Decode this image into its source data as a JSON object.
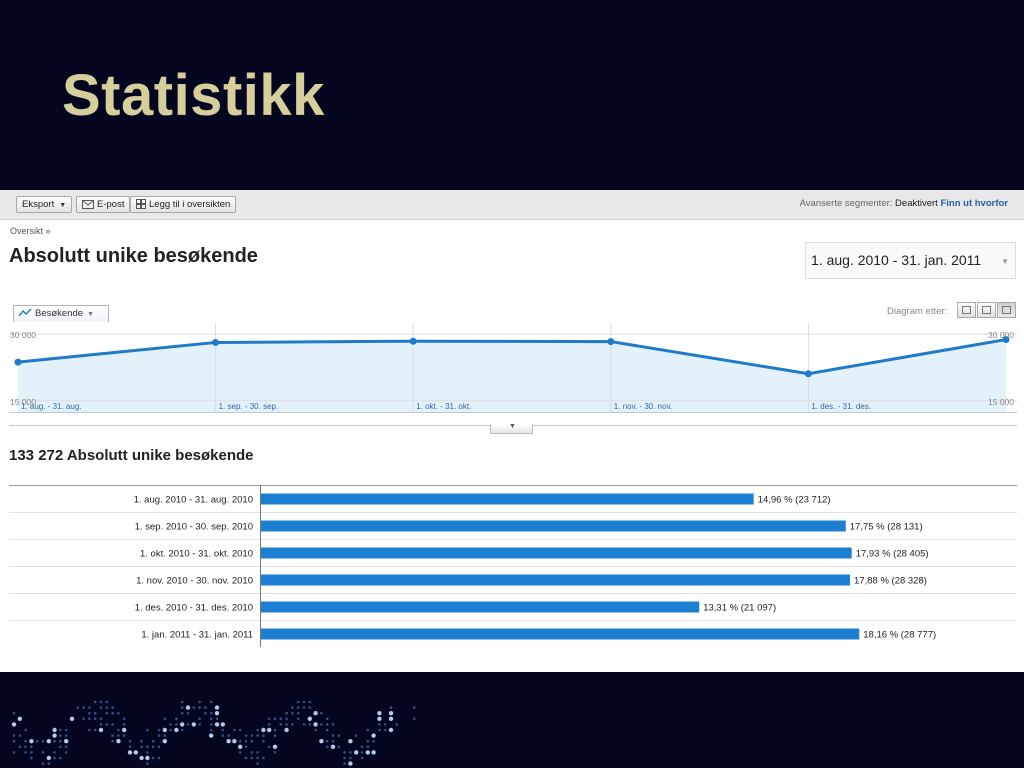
{
  "slide": {
    "title": "Statistikk"
  },
  "toolbar": {
    "export_label": "Eksport",
    "email_label": "E-post",
    "add_dashboard_label": "Legg til i oversikten",
    "segments_label": "Avanserte segmenter:",
    "segments_state": "Deaktivert",
    "segments_link": "Finn ut hvorfor"
  },
  "breadcrumb": "Oversikt »",
  "report": {
    "title": "Absolutt unike besøkende",
    "date_range": "1. aug. 2010 - 31. jan. 2011",
    "metric_select": "Besøkende",
    "graph_by_label": "Diagram etter:",
    "total_heading": "133 272 Absolutt unike besøkende"
  },
  "colors": {
    "line": "#1f7ac9",
    "area": "#e3f1fa",
    "bar": "#1d7fd2"
  },
  "chart_data": [
    {
      "type": "line",
      "ylabel_left": [
        "30 000",
        "15 000"
      ],
      "ylabel_right": [
        "30 000",
        "15 000"
      ],
      "ylim": [
        15000,
        30000
      ],
      "grid": true,
      "x_labels": [
        "1. aug. - 31. aug.",
        "1. sep. - 30. sep.",
        "1. okt. - 31. okt.",
        "1. nov. - 30. nov.",
        "1. des. - 31. des."
      ],
      "series": [
        {
          "values": [
            23712,
            28131,
            28405,
            28328,
            21097,
            28777
          ]
        }
      ]
    },
    {
      "type": "bar",
      "orientation": "horizontal",
      "categories": [
        "1. aug. 2010 - 31. aug. 2010",
        "1. sep. 2010 - 30. sep. 2010",
        "1. okt. 2010 - 31. okt. 2010",
        "1. nov. 2010 - 30. nov. 2010",
        "1. des. 2010 - 31. des. 2010",
        "1. jan. 2011 - 31. jan. 2011"
      ],
      "values": [
        23712,
        28131,
        28405,
        28328,
        21097,
        28777
      ],
      "percents": [
        14.96,
        17.75,
        17.93,
        17.88,
        13.31,
        18.16
      ],
      "data_labels": [
        "14,96 % (23 712)",
        "17,75 % (28 131)",
        "17,93 % (28 405)",
        "17,88 % (28 328)",
        "13,31 % (21 097)",
        "18,16 % (28 777)"
      ]
    }
  ]
}
